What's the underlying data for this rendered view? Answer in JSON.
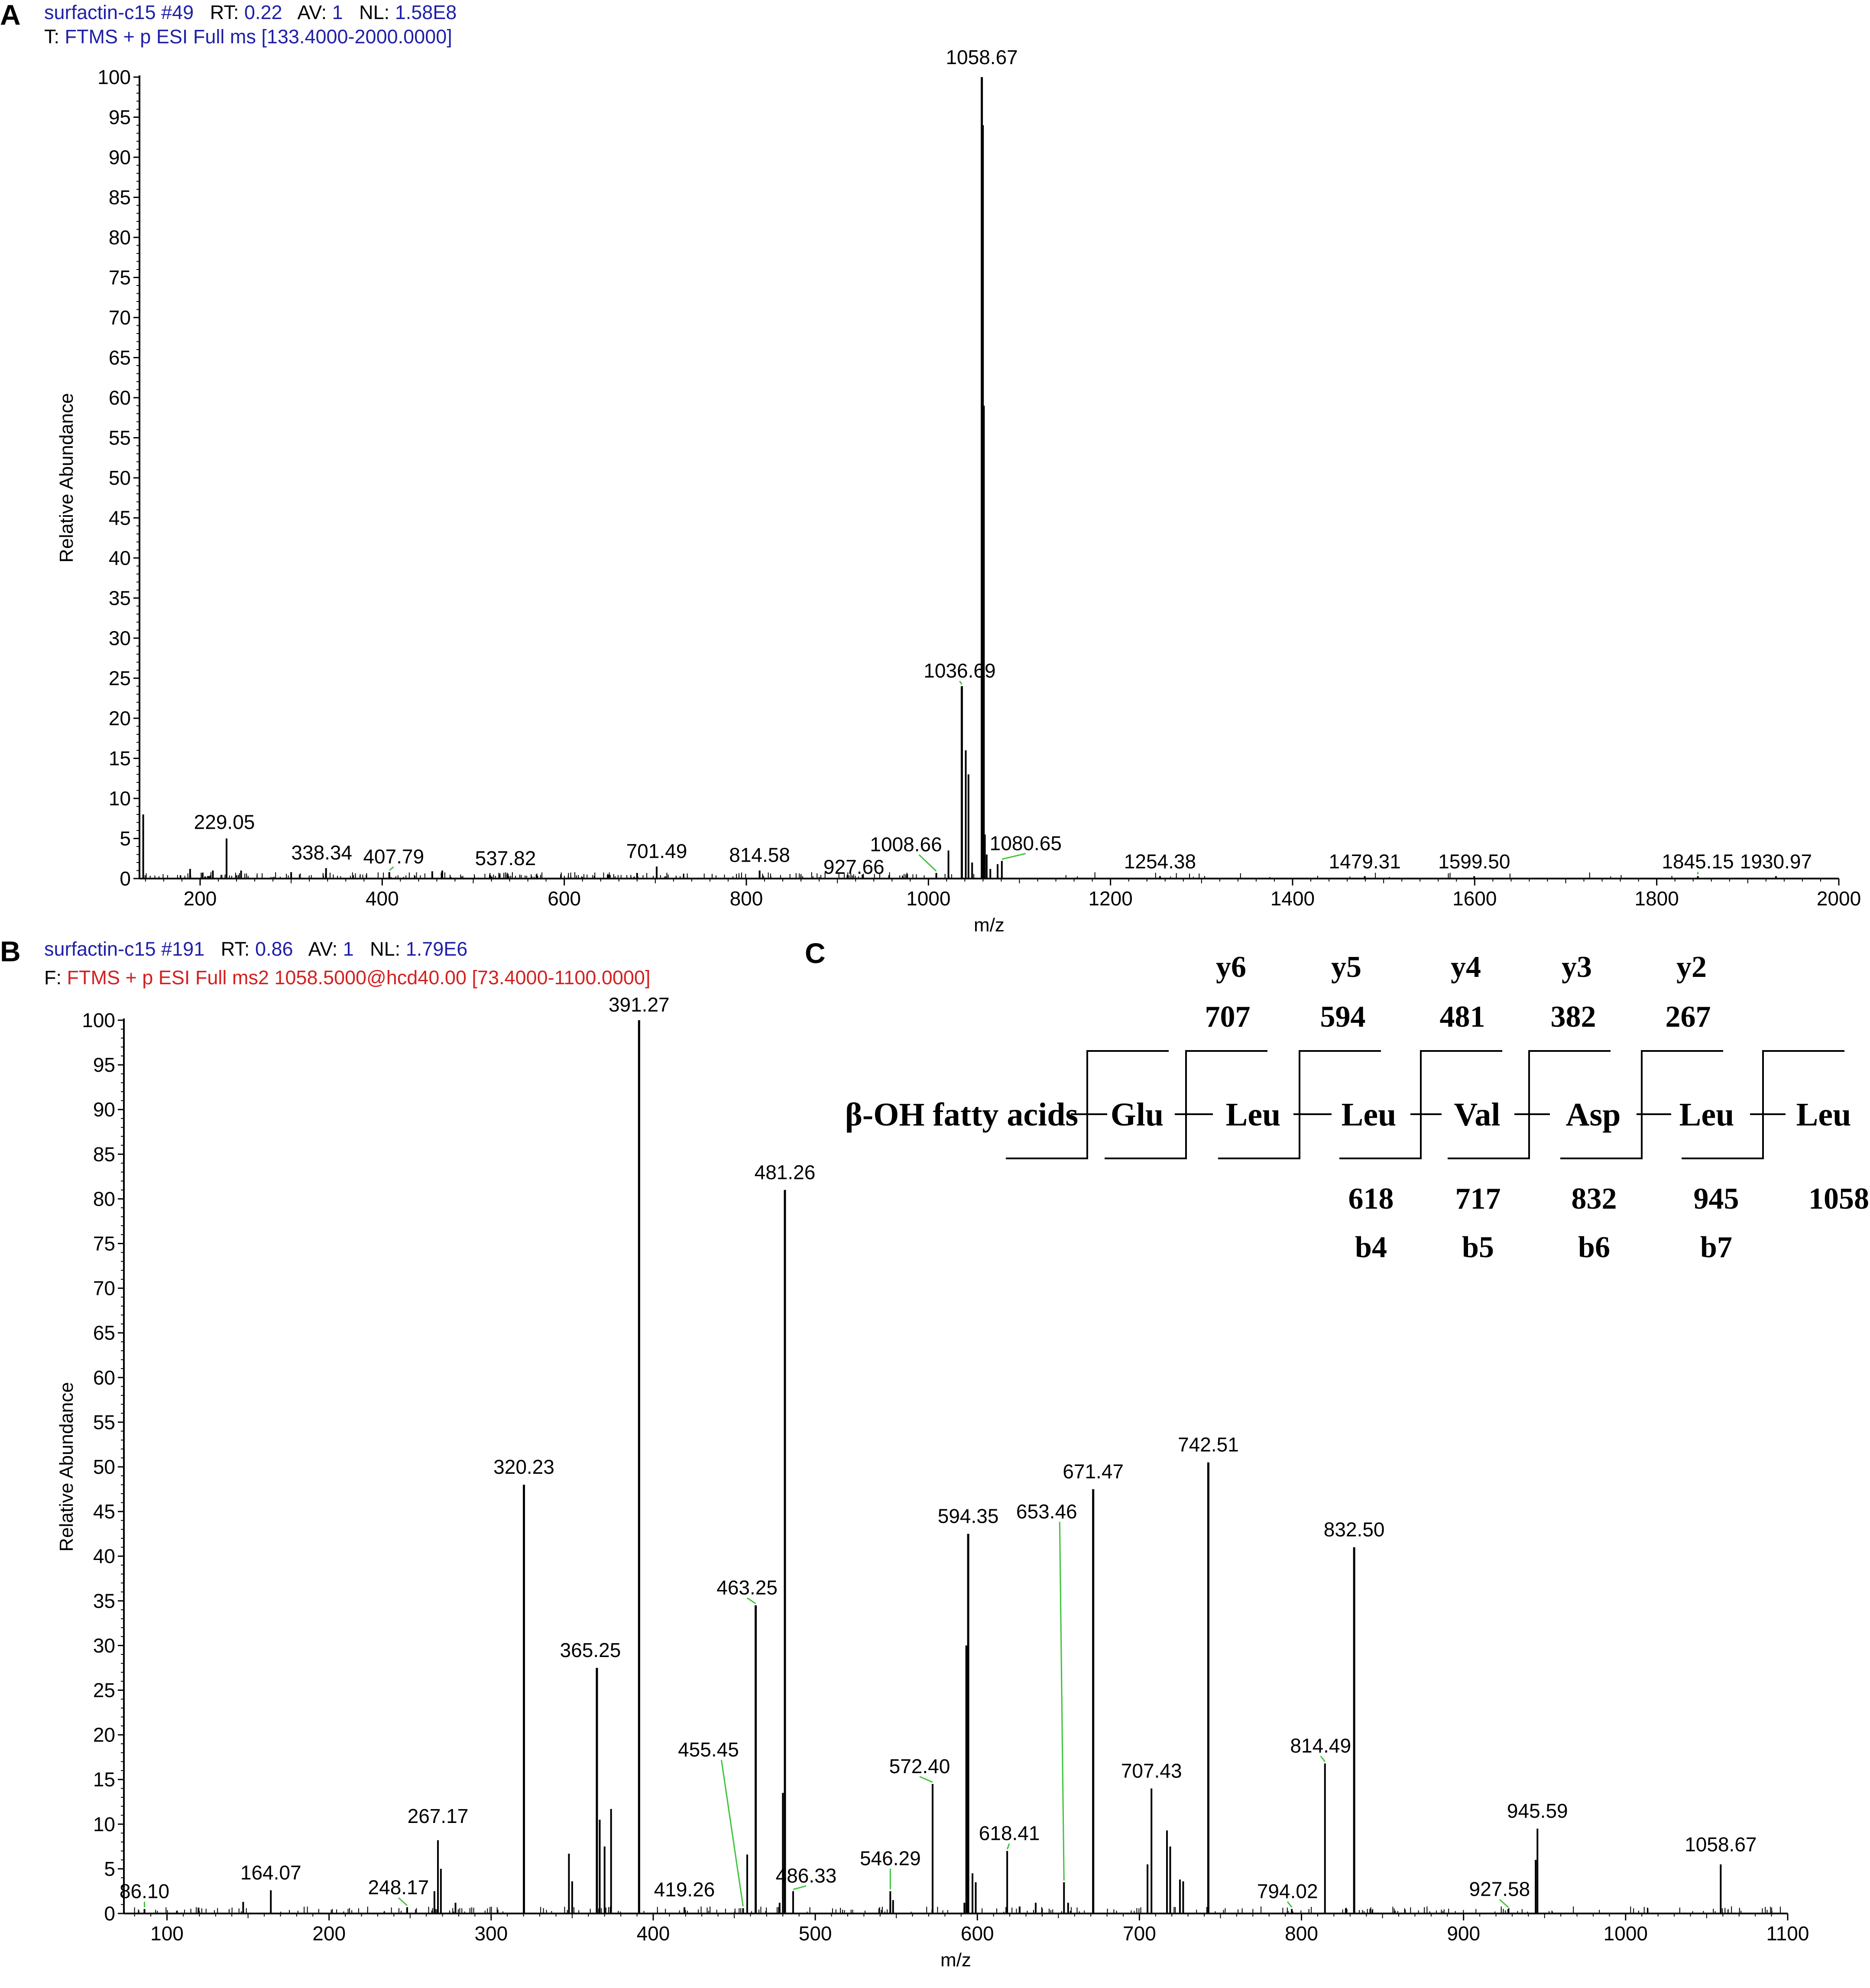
{
  "panels": {
    "A": {
      "letter": "A",
      "header1": {
        "name": "surfactin-c15 #49",
        "rt_label": "RT:",
        "rt": "0.22",
        "av_label": "AV:",
        "av": "1",
        "nl_label": "NL:",
        "nl": "1.58E8"
      },
      "header2": {
        "prefix": "T:",
        "scan": "FTMS + p ESI Full ms [133.4000-2000.0000]"
      }
    },
    "B": {
      "letter": "B",
      "header1": {
        "name": "surfactin-c15 #191",
        "rt_label": "RT:",
        "rt": "0.86",
        "av_label": "AV:",
        "av": "1",
        "nl_label": "NL:",
        "nl": "1.79E6"
      },
      "header2": {
        "prefix": "F:",
        "scan": "FTMS + p ESI Full ms2 1058.5000@hcd40.00 [73.4000-1100.0000]"
      }
    },
    "C": {
      "letter": "C"
    }
  },
  "chart_data": [
    {
      "panel": "A",
      "type": "bar",
      "xlabel": "m/z",
      "ylabel": "Relative Abundance",
      "xlim": [
        133.4,
        2000
      ],
      "ylim": [
        0,
        100
      ],
      "xticks": [
        200,
        400,
        600,
        800,
        1000,
        1200,
        1400,
        1600,
        1800,
        2000
      ],
      "yticks": [
        0,
        5,
        10,
        15,
        20,
        25,
        30,
        35,
        40,
        45,
        50,
        55,
        60,
        65,
        70,
        75,
        80,
        85,
        90,
        95,
        100
      ],
      "peaks": [
        {
          "x": 137.5,
          "y": 8.0
        },
        {
          "x": 189,
          "y": 1.2
        },
        {
          "x": 214,
          "y": 1.0
        },
        {
          "x": 229.05,
          "y": 5.0
        },
        {
          "x": 245,
          "y": 1.0
        },
        {
          "x": 300,
          "y": 0.8
        },
        {
          "x": 338.34,
          "y": 1.3
        },
        {
          "x": 407.79,
          "y": 0.8
        },
        {
          "x": 455,
          "y": 0.9
        },
        {
          "x": 466,
          "y": 1.0
        },
        {
          "x": 537.82,
          "y": 0.6
        },
        {
          "x": 680,
          "y": 0.7
        },
        {
          "x": 701.49,
          "y": 1.5
        },
        {
          "x": 814.58,
          "y": 1.0
        },
        {
          "x": 927.66,
          "y": 0.5
        },
        {
          "x": 1008.66,
          "y": 0.7
        },
        {
          "x": 1022,
          "y": 3.5
        },
        {
          "x": 1036.69,
          "y": 24.0
        },
        {
          "x": 1041,
          "y": 16.0
        },
        {
          "x": 1044,
          "y": 13.0
        },
        {
          "x": 1048,
          "y": 2.0
        },
        {
          "x": 1058.67,
          "y": 100.0
        },
        {
          "x": 1059.67,
          "y": 94.0
        },
        {
          "x": 1060.67,
          "y": 59.0
        },
        {
          "x": 1062,
          "y": 5.5
        },
        {
          "x": 1064,
          "y": 3.0
        },
        {
          "x": 1068,
          "y": 1.2
        },
        {
          "x": 1076,
          "y": 1.8
        },
        {
          "x": 1080.65,
          "y": 2.2
        },
        {
          "x": 1254.38,
          "y": 0.3
        },
        {
          "x": 1479.31,
          "y": 0.3
        },
        {
          "x": 1599.5,
          "y": 0.3
        },
        {
          "x": 1845.15,
          "y": 0.3
        },
        {
          "x": 1930.97,
          "y": 0.3
        }
      ],
      "labels": [
        {
          "text": "1058.67",
          "x": 1058.67,
          "y": 100.0
        },
        {
          "text": "1036.69",
          "x": 1036.69,
          "y": 24.0
        },
        {
          "text": "229.05",
          "x": 229.05,
          "y": 5.0
        },
        {
          "text": "338.34",
          "x": 338.34,
          "y": 1.3
        },
        {
          "text": "407.79",
          "x": 407.79,
          "y": 0.8
        },
        {
          "text": "537.82",
          "x": 537.82,
          "y": 0.6
        },
        {
          "text": "701.49",
          "x": 701.49,
          "y": 1.5
        },
        {
          "text": "814.58",
          "x": 814.58,
          "y": 1.0
        },
        {
          "text": "927.66",
          "x": 927.66,
          "y": 0.5
        },
        {
          "text": "1008.66",
          "x": 1008.66,
          "y": 0.7
        },
        {
          "text": "1080.65",
          "x": 1080.65,
          "y": 2.2
        },
        {
          "text": "1254.38",
          "x": 1254.38,
          "y": 0.3
        },
        {
          "text": "1479.31",
          "x": 1479.31,
          "y": 0.3
        },
        {
          "text": "1599.50",
          "x": 1599.5,
          "y": 0.3
        },
        {
          "text": "1845.15",
          "x": 1845.15,
          "y": 0.3
        },
        {
          "text": "1930.97",
          "x": 1930.97,
          "y": 0.3
        }
      ]
    },
    {
      "panel": "B",
      "type": "bar",
      "xlabel": "m/z",
      "ylabel": "Relative Abundance",
      "xlim": [
        73.4,
        1100
      ],
      "ylim": [
        0,
        100
      ],
      "xticks": [
        100,
        200,
        300,
        400,
        500,
        600,
        700,
        800,
        900,
        1000,
        1100
      ],
      "yticks": [
        0,
        5,
        10,
        15,
        20,
        25,
        30,
        35,
        40,
        45,
        50,
        55,
        60,
        65,
        70,
        75,
        80,
        85,
        90,
        95,
        100
      ],
      "peaks": [
        {
          "x": 86.1,
          "y": 0.5
        },
        {
          "x": 147,
          "y": 1.3
        },
        {
          "x": 164.07,
          "y": 2.6
        },
        {
          "x": 248.17,
          "y": 0.7
        },
        {
          "x": 265,
          "y": 2.5
        },
        {
          "x": 267.17,
          "y": 8.2
        },
        {
          "x": 269,
          "y": 5.0
        },
        {
          "x": 278,
          "y": 1.2
        },
        {
          "x": 320.23,
          "y": 48.0
        },
        {
          "x": 348,
          "y": 6.7
        },
        {
          "x": 350,
          "y": 3.6
        },
        {
          "x": 365.25,
          "y": 27.5
        },
        {
          "x": 367,
          "y": 10.5
        },
        {
          "x": 370,
          "y": 7.5
        },
        {
          "x": 374,
          "y": 11.7
        },
        {
          "x": 391.27,
          "y": 100.0
        },
        {
          "x": 419.26,
          "y": 0.7
        },
        {
          "x": 455.45,
          "y": 0.6
        },
        {
          "x": 458,
          "y": 6.6
        },
        {
          "x": 463.25,
          "y": 34.5
        },
        {
          "x": 478,
          "y": 1.2
        },
        {
          "x": 480,
          "y": 13.5
        },
        {
          "x": 481.26,
          "y": 81.0
        },
        {
          "x": 486.33,
          "y": 2.5
        },
        {
          "x": 546.29,
          "y": 2.5
        },
        {
          "x": 548,
          "y": 1.5
        },
        {
          "x": 572.4,
          "y": 14.5
        },
        {
          "x": 592,
          "y": 1.2
        },
        {
          "x": 593.3,
          "y": 30.0
        },
        {
          "x": 594.35,
          "y": 42.5
        },
        {
          "x": 597,
          "y": 4.5
        },
        {
          "x": 599,
          "y": 3.5
        },
        {
          "x": 618.41,
          "y": 7.0
        },
        {
          "x": 636,
          "y": 1.2
        },
        {
          "x": 653.46,
          "y": 3.5
        },
        {
          "x": 656,
          "y": 1.2
        },
        {
          "x": 671.47,
          "y": 47.5
        },
        {
          "x": 705,
          "y": 5.5
        },
        {
          "x": 707.43,
          "y": 14.0
        },
        {
          "x": 717,
          "y": 9.3
        },
        {
          "x": 719,
          "y": 7.5
        },
        {
          "x": 725,
          "y": 3.8
        },
        {
          "x": 727,
          "y": 3.6
        },
        {
          "x": 742.51,
          "y": 50.5
        },
        {
          "x": 794.02,
          "y": 0.5
        },
        {
          "x": 814.49,
          "y": 16.8
        },
        {
          "x": 832.5,
          "y": 41.0
        },
        {
          "x": 927.58,
          "y": 0.5
        },
        {
          "x": 944.5,
          "y": 6.0
        },
        {
          "x": 945.59,
          "y": 9.5
        },
        {
          "x": 1058.67,
          "y": 5.5
        }
      ],
      "labels": [
        {
          "text": "391.27",
          "x": 391.27,
          "y": 100.0
        },
        {
          "text": "481.26",
          "x": 481.26,
          "y": 81.0
        },
        {
          "text": "320.23",
          "x": 320.23,
          "y": 48.0
        },
        {
          "text": "742.51",
          "x": 742.51,
          "y": 50.5
        },
        {
          "text": "671.47",
          "x": 671.47,
          "y": 47.5
        },
        {
          "text": "594.35",
          "x": 594.35,
          "y": 42.5
        },
        {
          "text": "832.50",
          "x": 832.5,
          "y": 41.0
        },
        {
          "text": "463.25",
          "x": 463.25,
          "y": 34.5
        },
        {
          "text": "365.25",
          "x": 365.25,
          "y": 27.5
        },
        {
          "text": "653.46",
          "x": 653.46,
          "y": 3.5
        },
        {
          "text": "455.45",
          "x": 455.45,
          "y": 0.6
        },
        {
          "text": "707.43",
          "x": 707.43,
          "y": 14.0
        },
        {
          "text": "572.40",
          "x": 572.4,
          "y": 14.5
        },
        {
          "text": "814.49",
          "x": 814.49,
          "y": 16.8
        },
        {
          "text": "945.59",
          "x": 945.59,
          "y": 9.5
        },
        {
          "text": "267.17",
          "x": 267.17,
          "y": 8.2
        },
        {
          "text": "618.41",
          "x": 618.41,
          "y": 7.0
        },
        {
          "text": "1058.67",
          "x": 1058.67,
          "y": 5.5
        },
        {
          "text": "546.29",
          "x": 546.29,
          "y": 2.5
        },
        {
          "text": "164.07",
          "x": 164.07,
          "y": 2.6
        },
        {
          "text": "486.33",
          "x": 486.33,
          "y": 2.5
        },
        {
          "text": "419.26",
          "x": 419.26,
          "y": 0.7
        },
        {
          "text": "86.10",
          "x": 86.1,
          "y": 0.5
        },
        {
          "text": "248.17",
          "x": 248.17,
          "y": 0.7
        },
        {
          "text": "794.02",
          "x": 794.02,
          "y": 0.5
        },
        {
          "text": "927.58",
          "x": 927.58,
          "y": 0.5
        }
      ]
    }
  ],
  "sequence": {
    "residues": [
      "β-OH fatty acids",
      "Glu",
      "Leu",
      "Leu",
      "Val",
      "Asp",
      "Leu",
      "Leu"
    ],
    "y_ions": [
      {
        "name": "y6",
        "mass": "707"
      },
      {
        "name": "y5",
        "mass": "594"
      },
      {
        "name": "y4",
        "mass": "481"
      },
      {
        "name": "y3",
        "mass": "382"
      },
      {
        "name": "y2",
        "mass": "267"
      }
    ],
    "b_ions": [
      {
        "name": "b4",
        "mass": "618"
      },
      {
        "name": "b5",
        "mass": "717"
      },
      {
        "name": "b6",
        "mass": "832"
      },
      {
        "name": "b7",
        "mass": "945"
      },
      {
        "name": "",
        "mass": "1058"
      }
    ]
  }
}
